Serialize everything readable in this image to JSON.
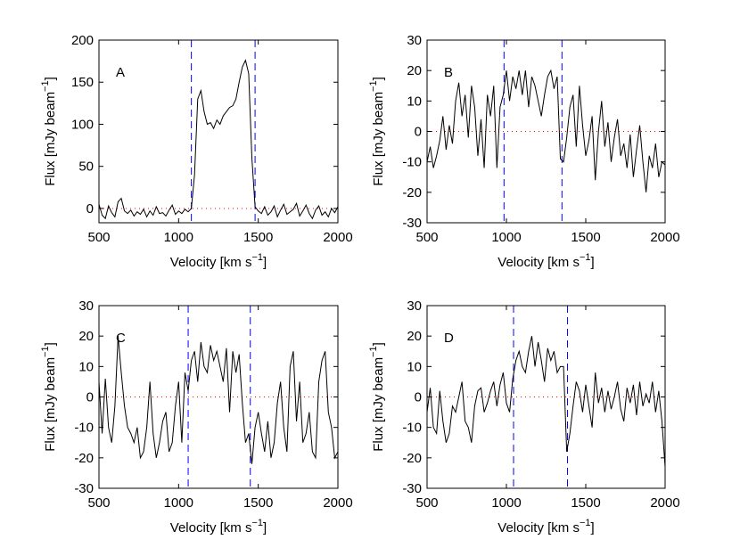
{
  "chart_data": [
    {
      "type": "line",
      "label": "A",
      "xlabel": {
        "text": "Velocity [km s",
        "superscript": "−1",
        "suffix": "]"
      },
      "ylabel": {
        "text": "Flux [mJy beam",
        "superscript": "−1",
        "suffix": "]"
      },
      "x": [
        500,
        520,
        540,
        560,
        580,
        600,
        620,
        640,
        660,
        680,
        700,
        720,
        740,
        760,
        780,
        800,
        820,
        840,
        860,
        880,
        900,
        920,
        940,
        960,
        980,
        1000,
        1020,
        1040,
        1060,
        1080,
        1100,
        1120,
        1140,
        1160,
        1180,
        1200,
        1220,
        1240,
        1260,
        1280,
        1300,
        1320,
        1340,
        1360,
        1380,
        1400,
        1420,
        1440,
        1460,
        1480,
        1500,
        1520,
        1540,
        1560,
        1580,
        1600,
        1620,
        1640,
        1660,
        1680,
        1700,
        1720,
        1740,
        1760,
        1780,
        1800,
        1820,
        1840,
        1860,
        1880,
        1900,
        1920,
        1940,
        1960,
        1980,
        2000
      ],
      "values": [
        5,
        -8,
        -12,
        3,
        -5,
        -10,
        8,
        12,
        -3,
        -6,
        -2,
        -9,
        -4,
        -7,
        -1,
        -10,
        -3,
        -8,
        2,
        -6,
        -5,
        -9,
        -2,
        4,
        -7,
        -3,
        -6,
        -1,
        -4,
        0,
        40,
        130,
        140,
        115,
        100,
        102,
        95,
        105,
        100,
        110,
        115,
        120,
        122,
        130,
        150,
        168,
        176,
        160,
        60,
        2,
        -3,
        -6,
        2,
        -8,
        -4,
        3,
        -10,
        -2,
        5,
        -7,
        -4,
        -1,
        6,
        -9,
        -3,
        4,
        -6,
        -12,
        -2,
        3,
        -8,
        -4,
        -10,
        0,
        -5,
        2
      ],
      "color": "#000000",
      "xlim": [
        500,
        2000
      ],
      "ylim": [
        -17,
        200
      ],
      "xticks": [
        500,
        1000,
        1500,
        2000
      ],
      "yticks": [
        0,
        50,
        100,
        150,
        200
      ],
      "vlines": [
        1080,
        1480
      ],
      "vline_color": "#0000ff",
      "hline": 0,
      "hline_color": "#ff0000"
    },
    {
      "type": "line",
      "label": "B",
      "xlabel": {
        "text": "Velocity [km s",
        "superscript": "−1",
        "suffix": "]"
      },
      "ylabel": {
        "text": "Flux [mJy beam",
        "superscript": "−1",
        "suffix": "]"
      },
      "x": [
        500,
        520,
        540,
        560,
        580,
        600,
        620,
        640,
        660,
        680,
        700,
        720,
        740,
        760,
        780,
        800,
        820,
        840,
        860,
        880,
        900,
        920,
        940,
        960,
        980,
        1000,
        1020,
        1040,
        1060,
        1080,
        1100,
        1120,
        1140,
        1160,
        1180,
        1200,
        1220,
        1240,
        1260,
        1280,
        1300,
        1320,
        1340,
        1360,
        1380,
        1400,
        1420,
        1440,
        1460,
        1480,
        1500,
        1520,
        1540,
        1560,
        1580,
        1600,
        1620,
        1640,
        1660,
        1680,
        1700,
        1720,
        1740,
        1760,
        1780,
        1800,
        1820,
        1840,
        1860,
        1880,
        1900,
        1920,
        1940,
        1960,
        1980,
        2000
      ],
      "values": [
        -10,
        -5,
        -12,
        -8,
        -3,
        5,
        -6,
        2,
        -4,
        10,
        16,
        5,
        12,
        -2,
        15,
        8,
        -8,
        4,
        -12,
        12,
        5,
        15,
        -12,
        8,
        12,
        20,
        10,
        18,
        14,
        20,
        12,
        20,
        8,
        18,
        15,
        10,
        5,
        12,
        18,
        20,
        14,
        18,
        -9,
        -10,
        -2,
        8,
        12,
        -5,
        15,
        2,
        -8,
        -3,
        5,
        -16,
        0,
        10,
        -5,
        3,
        -10,
        -2,
        4,
        -8,
        -4,
        -12,
        -1,
        -15,
        -6,
        2,
        -10,
        -20,
        -8,
        -12,
        -4,
        -15,
        -10,
        -11
      ],
      "color": "#000000",
      "xlim": [
        500,
        2000
      ],
      "ylim": [
        -30,
        30
      ],
      "xticks": [
        500,
        1000,
        1500,
        2000
      ],
      "yticks": [
        -30,
        -20,
        -10,
        0,
        10,
        20,
        30
      ],
      "vlines": [
        985,
        1350
      ],
      "vline_color": "#0000ff",
      "hline": 0,
      "hline_color": "#ff0000"
    },
    {
      "type": "line",
      "label": "C",
      "xlabel": {
        "text": "Velocity [km s",
        "superscript": "−1",
        "suffix": "]"
      },
      "ylabel": {
        "text": "Flux [mJy beam",
        "superscript": "−1",
        "suffix": "]"
      },
      "x": [
        500,
        520,
        540,
        560,
        580,
        600,
        620,
        640,
        660,
        680,
        700,
        720,
        740,
        760,
        780,
        800,
        820,
        840,
        860,
        880,
        900,
        920,
        940,
        960,
        980,
        1000,
        1020,
        1040,
        1060,
        1080,
        1100,
        1120,
        1140,
        1160,
        1180,
        1200,
        1220,
        1240,
        1260,
        1280,
        1300,
        1320,
        1340,
        1360,
        1380,
        1400,
        1420,
        1440,
        1460,
        1480,
        1500,
        1520,
        1540,
        1560,
        1580,
        1600,
        1620,
        1640,
        1660,
        1680,
        1700,
        1720,
        1740,
        1760,
        1780,
        1800,
        1820,
        1840,
        1860,
        1880,
        1900,
        1920,
        1940,
        1960,
        1980,
        2000
      ],
      "values": [
        5,
        -12,
        6,
        -10,
        -15,
        -3,
        20,
        8,
        -3,
        -10,
        -12,
        -15,
        -10,
        -20,
        -18,
        -10,
        5,
        -12,
        -20,
        -15,
        -8,
        -5,
        -18,
        -15,
        -3,
        5,
        -15,
        8,
        2,
        12,
        15,
        5,
        18,
        10,
        8,
        17,
        12,
        15,
        10,
        5,
        16,
        -5,
        15,
        8,
        14,
        -2,
        -15,
        -12,
        -22,
        -10,
        -5,
        -12,
        -18,
        -8,
        -20,
        -15,
        -2,
        5,
        -10,
        -18,
        10,
        15,
        -8,
        5,
        -15,
        -12,
        -5,
        -18,
        -20,
        5,
        12,
        15,
        -5,
        -10,
        -20,
        -18
      ],
      "color": "#000000",
      "xlim": [
        500,
        2000
      ],
      "ylim": [
        -30,
        30
      ],
      "xticks": [
        500,
        1000,
        1500,
        2000
      ],
      "yticks": [
        -30,
        -20,
        -10,
        0,
        10,
        20,
        30
      ],
      "vlines": [
        1060,
        1450
      ],
      "vline_color": "#0000ff",
      "hline": 0,
      "hline_color": "#ff0000"
    },
    {
      "type": "line",
      "label": "D",
      "xlabel": {
        "text": "Velocity [km s",
        "superscript": "−1",
        "suffix": "]"
      },
      "ylabel": {
        "text": "Flux [mJy beam",
        "superscript": "−1",
        "suffix": "]"
      },
      "x": [
        500,
        520,
        540,
        560,
        580,
        600,
        620,
        640,
        660,
        680,
        700,
        720,
        740,
        760,
        780,
        800,
        820,
        840,
        860,
        880,
        900,
        920,
        940,
        960,
        980,
        1000,
        1020,
        1040,
        1060,
        1080,
        1100,
        1120,
        1140,
        1160,
        1180,
        1200,
        1220,
        1240,
        1260,
        1280,
        1300,
        1320,
        1340,
        1360,
        1380,
        1400,
        1420,
        1440,
        1460,
        1480,
        1500,
        1520,
        1540,
        1560,
        1580,
        1600,
        1620,
        1640,
        1660,
        1680,
        1700,
        1720,
        1740,
        1760,
        1780,
        1800,
        1820,
        1840,
        1860,
        1880,
        1900,
        1920,
        1940,
        1960,
        1980,
        2000
      ],
      "values": [
        -5,
        3,
        -10,
        -12,
        2,
        -8,
        -15,
        -12,
        -3,
        -5,
        0,
        5,
        -8,
        -10,
        -15,
        -3,
        2,
        3,
        -5,
        -2,
        2,
        5,
        -3,
        4,
        8,
        -2,
        -5,
        6,
        12,
        15,
        10,
        8,
        15,
        20,
        10,
        18,
        12,
        5,
        16,
        12,
        15,
        8,
        10,
        10,
        -18,
        -12,
        -3,
        5,
        2,
        -5,
        4,
        -3,
        -10,
        8,
        -2,
        3,
        -5,
        2,
        -4,
        0,
        5,
        -4,
        -8,
        3,
        -2,
        4,
        -6,
        5,
        -3,
        1,
        -2,
        5,
        -5,
        2,
        -8,
        -23
      ],
      "color": "#000000",
      "xlim": [
        500,
        2000
      ],
      "ylim": [
        -30,
        30
      ],
      "xticks": [
        500,
        1000,
        1500,
        2000
      ],
      "yticks": [
        -30,
        -20,
        -10,
        0,
        10,
        20,
        30
      ],
      "vlines": [
        1045,
        1385
      ],
      "vline_color": "#0000ff",
      "hline": 0,
      "hline_color": "#ff0000"
    }
  ]
}
